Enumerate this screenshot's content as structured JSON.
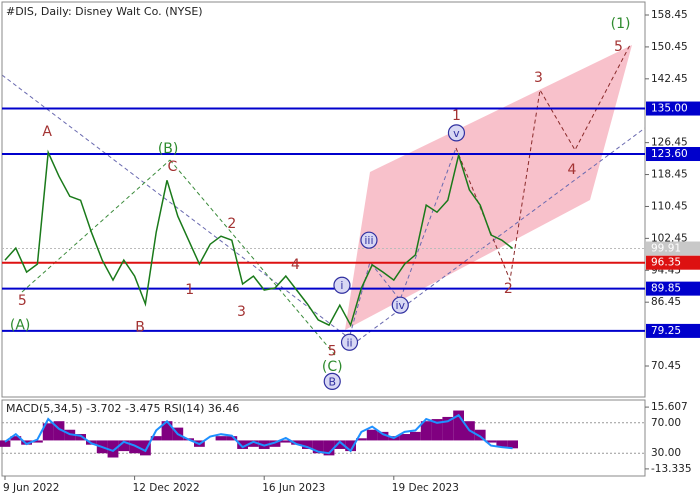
{
  "title": "#DIS, Daily:  Disney Walt Co. (NYSE)",
  "chart_data": [
    {
      "type": "line",
      "categories": [
        "9 Jun 2022",
        null,
        null,
        null,
        null,
        null,
        null,
        null,
        null,
        null,
        null,
        null,
        "12 Dec 2022",
        null,
        null,
        null,
        null,
        null,
        null,
        null,
        null,
        null,
        null,
        null,
        "16 Jun 2023",
        null,
        null,
        null,
        null,
        null,
        null,
        null,
        null,
        null,
        null,
        null,
        "19 Dec 2023",
        null,
        null,
        null,
        null,
        null,
        null,
        null,
        null,
        null,
        null,
        null,
        null,
        null,
        null,
        null,
        null,
        null,
        null,
        null,
        null,
        null,
        null,
        null
      ],
      "series": [
        {
          "color": "#1a7a1a",
          "values": [
            97,
            100,
            94,
            96,
            124,
            118,
            113,
            112,
            104,
            97,
            92,
            97,
            93,
            86,
            104,
            117,
            108,
            102,
            96,
            101,
            103,
            102,
            91,
            93,
            89.5,
            90,
            93,
            89.5,
            86,
            82,
            80.7,
            85.7,
            80.7,
            90,
            95.8,
            94,
            92,
            96,
            98.3,
            110.8,
            109,
            112,
            123.3,
            114.6,
            110.8,
            103.3,
            102,
            99.91,
            null,
            null,
            null,
            null,
            null,
            null,
            null,
            null,
            null,
            null,
            null,
            null
          ]
        }
      ],
      "ylim": [
        62.68,
        161.71
      ],
      "yticks": [
        158.45,
        150.45,
        142.45,
        126.45,
        118.45,
        110.45,
        102.45,
        94.45,
        86.45,
        70.45
      ],
      "levels": [
        {
          "value": 135,
          "label": "135.00",
          "color": "#0000cc"
        },
        {
          "value": 123.6,
          "label": "123.60",
          "color": "#0000cc"
        },
        {
          "value": 96.35,
          "label": "96.35",
          "color": "#dd1111"
        },
        {
          "value": 89.85,
          "label": "89.85",
          "color": "#0000cc"
        },
        {
          "value": 79.25,
          "label": "79.25",
          "color": "#0000cc"
        }
      ],
      "current_price": 99.91,
      "annotations": [
        {
          "text": "5",
          "x": 1.6,
          "y": 87.0,
          "color": "#a33333"
        },
        {
          "text": "(A)",
          "x": 1.4,
          "y": 80.8,
          "color": "#2e8b2e"
        },
        {
          "text": "A",
          "x": 3.9,
          "y": 129.4,
          "color": "#a33333"
        },
        {
          "text": "B",
          "x": 12.5,
          "y": 80.3,
          "color": "#a33333"
        },
        {
          "text": "(B)",
          "x": 15.1,
          "y": 125.1,
          "color": "#2e8b2e"
        },
        {
          "text": "C",
          "x": 15.5,
          "y": 120.6,
          "color": "#a33333"
        },
        {
          "text": "1",
          "x": 17.1,
          "y": 89.7,
          "color": "#a33333"
        },
        {
          "text": "2",
          "x": 21.0,
          "y": 106.3,
          "color": "#a33333"
        },
        {
          "text": "3",
          "x": 21.9,
          "y": 84.2,
          "color": "#a33333"
        },
        {
          "text": "4",
          "x": 26.9,
          "y": 96.0,
          "color": "#a33333"
        },
        {
          "text": "5",
          "x": 30.3,
          "y": 74.4,
          "color": "#a33333"
        },
        {
          "text": "(C)",
          "x": 30.3,
          "y": 70.4,
          "color": "#2e8b2e"
        },
        {
          "text": "B",
          "x": 30.3,
          "y": 66.6,
          "color": "#3030a0",
          "circled": true
        },
        {
          "text": "i",
          "x": 31.2,
          "y": 90.7,
          "color": "#3030a0",
          "circled": true
        },
        {
          "text": "ii",
          "x": 31.9,
          "y": 76.4,
          "color": "#3030a0",
          "circled": true
        },
        {
          "text": "iii",
          "x": 33.7,
          "y": 102.0,
          "color": "#3030a0",
          "circled": true
        },
        {
          "text": "iv",
          "x": 36.6,
          "y": 85.7,
          "color": "#3030a0",
          "circled": true
        },
        {
          "text": "v",
          "x": 41.8,
          "y": 128.9,
          "color": "#3030a0",
          "circled": true
        },
        {
          "text": "1",
          "x": 41.8,
          "y": 133.4,
          "color": "#a33333"
        },
        {
          "text": "2",
          "x": 46.6,
          "y": 90.0,
          "color": "#a33333"
        },
        {
          "text": "3",
          "x": 49.4,
          "y": 142.9,
          "color": "#a33333"
        },
        {
          "text": "4",
          "x": 52.5,
          "y": 119.9,
          "color": "#a33333"
        },
        {
          "text": "5",
          "x": 56.8,
          "y": 150.7,
          "color": "#a33333"
        },
        {
          "text": "(1)",
          "x": 57.0,
          "y": 156.5,
          "color": "#2e8b2e"
        }
      ]
    },
    {
      "type": "bar",
      "indicator_label": "MACD(5,34,5) -3.702 -3.475 RSI(14) 36.46",
      "series": [
        {
          "type": "bar",
          "color": "#800080",
          "values": [
            -3,
            2,
            -2,
            -1,
            8,
            9,
            5,
            3,
            -2,
            -6,
            -8,
            -5,
            -6,
            -7,
            2,
            9,
            6,
            1,
            -3,
            0,
            2,
            2,
            -4,
            -3,
            -4,
            -3,
            -1,
            -2,
            -4,
            -6,
            -7,
            -4,
            -5,
            1,
            5,
            4,
            2,
            3,
            4,
            9,
            10,
            11,
            14,
            9,
            5,
            -1,
            -3,
            -3.702
          ]
        },
        {
          "type": "line",
          "axis": "y2",
          "color": "#1e90ff",
          "values": [
            45,
            55,
            42,
            48,
            75,
            62,
            55,
            53,
            43,
            38,
            33,
            45,
            40,
            33,
            60,
            72,
            55,
            48,
            42,
            52,
            55,
            53,
            38,
            45,
            40,
            44,
            50,
            42,
            38,
            32,
            30,
            45,
            33,
            58,
            65,
            55,
            50,
            58,
            60,
            75,
            70,
            72,
            80,
            60,
            52,
            40,
            38,
            36.46
          ]
        }
      ],
      "ylim": [
        -16.66,
        18.93
      ],
      "yticks": [
        15.607,
        -13.335
      ],
      "y2lim": [
        0,
        100
      ],
      "y2ticks": [
        {
          "value": 70,
          "label": "70.00"
        },
        {
          "value": 30,
          "label": "30.00"
        }
      ]
    }
  ]
}
